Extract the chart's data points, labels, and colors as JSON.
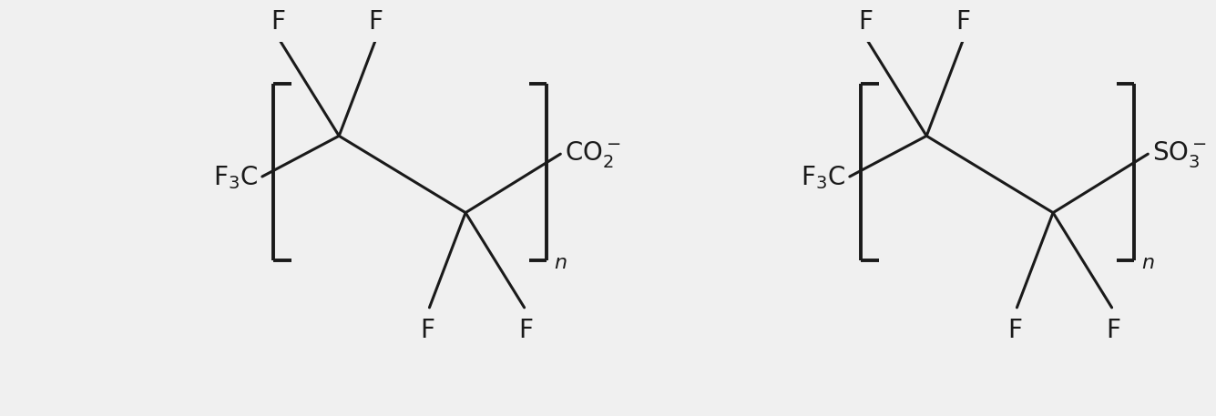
{
  "bg_color": "#f0f0f0",
  "line_color": "#1a1a1a",
  "line_width": 2.2,
  "font_size": 20,
  "bracket_lw": 2.8,
  "structures": [
    {
      "ox": 1.2,
      "oy": 0.5,
      "group_latex": "CO$_2^-$"
    },
    {
      "ox": 7.7,
      "oy": 0.5,
      "group_latex": "SO$_3^-$"
    }
  ]
}
